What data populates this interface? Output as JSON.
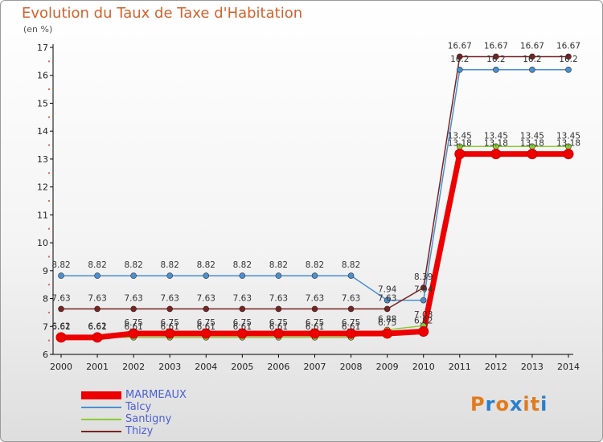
{
  "header": {
    "title": "Evolution du Taux de Taxe d'Habitation",
    "unit": "(en %)"
  },
  "logo": {
    "text": "Proxiti",
    "colors": [
      "#e07b1f",
      "#2a7fc8",
      "#e07b1f",
      "#2a7fc8",
      "#e07b1f",
      "#e07b1f",
      "#2a7fc8"
    ]
  },
  "chart_data": {
    "type": "line",
    "title": "Evolution du Taux de Taxe d'Habitation",
    "ylabel": "(en %)",
    "xlabel": "",
    "ylim": [
      6,
      17
    ],
    "yticks": [
      6,
      7,
      8,
      9,
      10,
      11,
      12,
      13,
      14,
      15,
      16,
      17
    ],
    "x": [
      "2000",
      "2001",
      "2002",
      "2003",
      "2004",
      "2005",
      "2006",
      "2007",
      "2008",
      "2009",
      "2010",
      "2011",
      "2012",
      "2013",
      "2014"
    ],
    "grid": false,
    "legend_position": "bottom-left",
    "series": [
      {
        "name": "MARMEAUX",
        "color": "#ee0000",
        "values": [
          6.61,
          6.61,
          6.75,
          6.75,
          6.75,
          6.75,
          6.75,
          6.75,
          6.75,
          6.75,
          6.82,
          13.18,
          13.18,
          13.18,
          13.18
        ],
        "labels": [
          "6.61",
          "6.61",
          "6.75",
          "6.75",
          "6.75",
          "6.75",
          "6.75",
          "6.75",
          "6.75",
          "6.75",
          "6.82",
          "13.18",
          "13.18",
          "13.18",
          "13.18"
        ]
      },
      {
        "name": "Talcy",
        "color": "#4a90d0",
        "values": [
          8.82,
          8.82,
          8.82,
          8.82,
          8.82,
          8.82,
          8.82,
          8.82,
          8.82,
          7.94,
          7.94,
          16.2,
          16.2,
          16.2,
          16.2
        ],
        "labels": [
          "8.82",
          "8.82",
          "8.82",
          "8.82",
          "8.82",
          "8.82",
          "8.82",
          "8.82",
          "8.82",
          "7.94",
          "7.94",
          "16.2",
          "16.2",
          "16.2",
          "16.2"
        ]
      },
      {
        "name": "Santigny",
        "color": "#88cc33",
        "values": [
          6.62,
          6.62,
          6.61,
          6.61,
          6.61,
          6.61,
          6.61,
          6.61,
          6.61,
          6.88,
          7.03,
          13.45,
          13.45,
          13.45,
          13.45
        ],
        "labels": [
          "6.62",
          "6.62",
          "6.61",
          "6.61",
          "6.61",
          "6.61",
          "6.61",
          "6.61",
          "6.61",
          "6.88",
          "7.03",
          "13.45",
          "13.45",
          "13.45",
          "13.45"
        ]
      },
      {
        "name": "Thizy",
        "color": "#7a2222",
        "values": [
          7.63,
          7.63,
          7.63,
          7.63,
          7.63,
          7.63,
          7.63,
          7.63,
          7.63,
          7.63,
          8.39,
          16.67,
          16.67,
          16.67,
          16.67
        ],
        "labels": [
          "7.63",
          "7.63",
          "7.63",
          "7.63",
          "7.63",
          "7.63",
          "7.63",
          "7.63",
          "7.63",
          "7.63",
          "8.39",
          "16.67",
          "16.67",
          "16.67",
          "16.67"
        ]
      }
    ]
  }
}
